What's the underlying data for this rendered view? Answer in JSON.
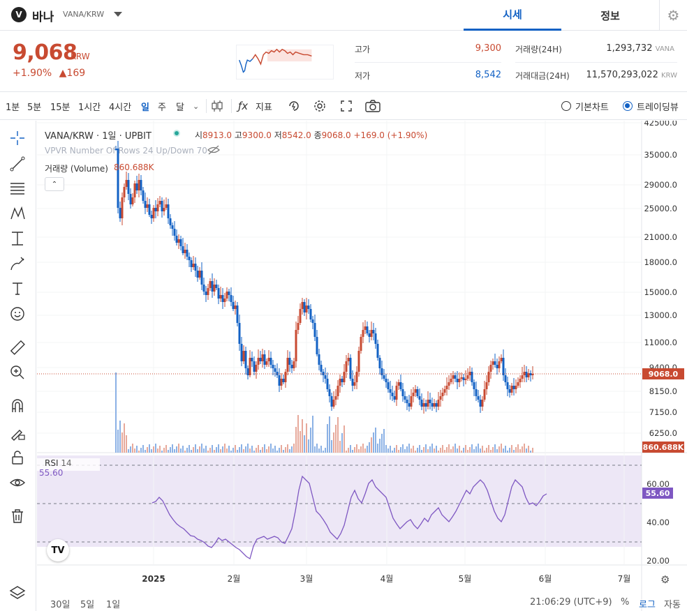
{
  "header": {
    "coin_name": "바나",
    "pair": "VANA/KRW",
    "tabs": [
      "시세",
      "정보"
    ]
  },
  "ticker": {
    "price": "9,068",
    "unit": "KRW",
    "change_pct": "+1.90%",
    "change_abs": "▲169",
    "high_label": "고가",
    "high_value": "9,300",
    "low_label": "저가",
    "low_value": "8,542",
    "volume_label": "거래량(24H)",
    "volume_value": "1,293,732",
    "volume_unit": "VANA",
    "amount_label": "거래대금(24H)",
    "amount_value": "11,570,293,022",
    "amount_unit": "KRW"
  },
  "toolbar": {
    "intervals": [
      "1분",
      "5분",
      "15분",
      "1시간",
      "4시간",
      "일",
      "주",
      "달"
    ],
    "active_interval": "일",
    "indicator_label": "지표",
    "basic_chart_label": "기본차트",
    "trading_view_label": "트레이딩뷰"
  },
  "chart": {
    "title": "VANA/KRW · 1일 · UPBIT",
    "ohlc": {
      "o_label": "시",
      "o": "8913.0",
      "h_label": "고",
      "h": "9300.0",
      "l_label": "저",
      "l": "8542.0",
      "c_label": "종",
      "c": "9068.0",
      "change": "+169.0 (+1.90%)"
    },
    "vpvr_label": "VPVR Number Of Rows 24 Up/Down 70",
    "volume_label": "거래량 (Volume)",
    "volume_value": "860.688K",
    "rsi_label": "RSI",
    "rsi_period": "14",
    "rsi_value": "55.60",
    "price_axis_ticks": [
      "42500.0",
      "35000.0",
      "29000.0",
      "25000.0",
      "21000.0",
      "18000.0",
      "15000.0",
      "13000.0",
      "11000.0",
      "9400.0",
      "8150.0",
      "7150.0",
      "6250.0"
    ],
    "last_price_tag": "9068.0",
    "volume_tag": "860.688K",
    "rsi_ticks": [
      "60.00",
      "40.00",
      "20.00"
    ],
    "rsi_tag": "55.60",
    "time_ticks": [
      "2025",
      "2월",
      "3월",
      "4월",
      "5월",
      "6월",
      "7월"
    ],
    "ranges": [
      "30일",
      "5일",
      "1일"
    ],
    "clock": "21:06:29 (UTC+9)",
    "pct_label": "%",
    "log_label": "로그",
    "auto_label": "자동"
  },
  "colors": {
    "up": "#c84a31",
    "down": "#1261c4",
    "rsi": "#7e57c2"
  }
}
